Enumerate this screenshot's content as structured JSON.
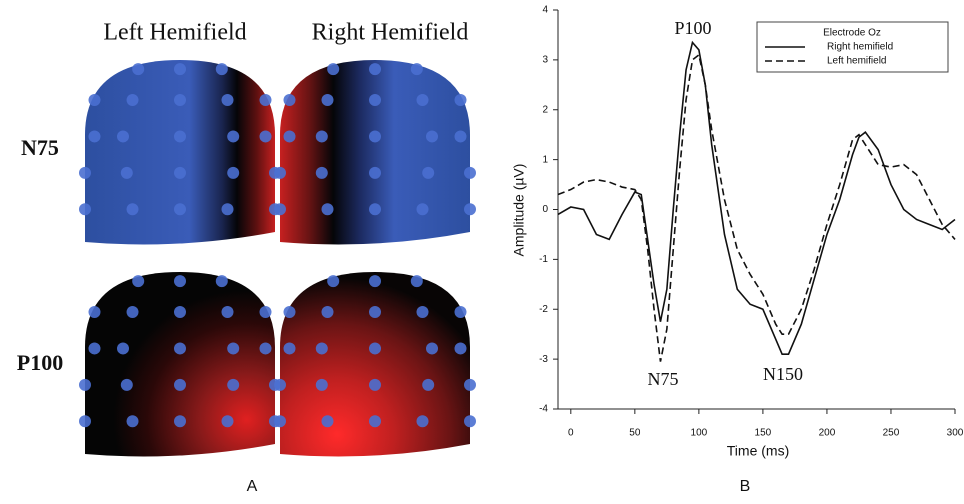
{
  "panel_a": {
    "label": "A",
    "columns": [
      "Left Hemifield",
      "Right Hemifield"
    ],
    "rows": [
      "N75",
      "P100"
    ]
  },
  "chart_data": {
    "type": "line",
    "panel_label": "B",
    "x_label": "Time (ms)",
    "y_label": "Amplitude (µV)",
    "legend_title": "Electrode Oz",
    "legend": "upper right",
    "annotations": [
      "P100",
      "N75",
      "N150"
    ],
    "x": [
      -10,
      0,
      10,
      20,
      30,
      40,
      50,
      55,
      60,
      65,
      70,
      75,
      80,
      85,
      90,
      95,
      100,
      105,
      110,
      120,
      130,
      140,
      150,
      160,
      165,
      170,
      180,
      190,
      200,
      210,
      220,
      225,
      230,
      240,
      250,
      260,
      270,
      280,
      290,
      300
    ],
    "series": [
      {
        "name": "Right hemifield",
        "color": "#111111",
        "dash": "solid",
        "values": [
          -0.1,
          0.05,
          0.0,
          -0.5,
          -0.6,
          -0.1,
          0.35,
          0.3,
          -0.6,
          -1.5,
          -2.25,
          -1.6,
          0.0,
          1.5,
          2.8,
          3.35,
          3.2,
          2.5,
          1.3,
          -0.5,
          -1.6,
          -1.9,
          -2.0,
          -2.6,
          -2.9,
          -2.9,
          -2.3,
          -1.4,
          -0.5,
          0.2,
          1.1,
          1.45,
          1.55,
          1.2,
          0.5,
          0.0,
          -0.2,
          -0.3,
          -0.4,
          -0.2
        ]
      },
      {
        "name": "Left hemifield",
        "color": "#111111",
        "dash": "dashed",
        "values": [
          0.3,
          0.4,
          0.55,
          0.6,
          0.55,
          0.45,
          0.4,
          0.2,
          -0.8,
          -2.0,
          -3.05,
          -2.4,
          -0.8,
          0.8,
          2.2,
          3.0,
          3.1,
          2.5,
          1.6,
          0.2,
          -0.8,
          -1.3,
          -1.7,
          -2.3,
          -2.5,
          -2.5,
          -2.0,
          -1.2,
          -0.3,
          0.5,
          1.4,
          1.5,
          1.3,
          0.9,
          0.85,
          0.9,
          0.7,
          0.2,
          -0.3,
          -0.6
        ]
      }
    ],
    "xlim": [
      -10,
      300
    ],
    "xticks": [
      0,
      50,
      100,
      150,
      200,
      250,
      300
    ],
    "ylim": [
      -4,
      4
    ],
    "yticks": [
      -4,
      -3,
      -2,
      -1,
      0,
      1,
      2,
      3,
      4
    ]
  }
}
